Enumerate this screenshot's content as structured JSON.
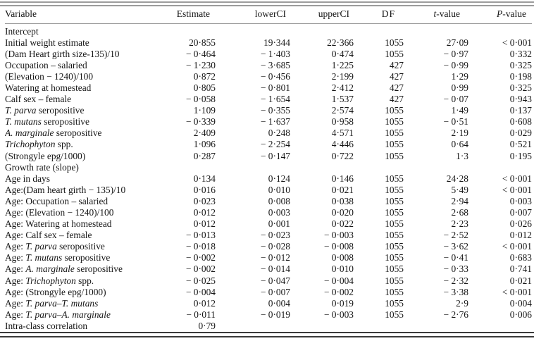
{
  "page": {
    "background": "#ffffff",
    "text_color": "#161616"
  },
  "rules": {
    "top_color": "#9c9c9c",
    "header_rule_color": "#9c9c9c",
    "bottom_color": "#3a3a3a"
  },
  "table": {
    "columns": [
      {
        "name": "variable",
        "label": "Variable"
      },
      {
        "name": "estimate",
        "label": "Estimate"
      },
      {
        "name": "lowerCI",
        "label": "lowerCI"
      },
      {
        "name": "upperCI",
        "label": "upperCI"
      },
      {
        "name": "df",
        "label": "DF"
      },
      {
        "name": "t_value",
        "label": "*t*-value"
      },
      {
        "name": "p_value",
        "label": "*P*-value"
      }
    ],
    "rows": [
      {
        "label": "Intercept",
        "section": true
      },
      {
        "label": "Initial weight estimate",
        "values": [
          "20·855",
          "19·344",
          "22·366",
          "1055",
          "27·09",
          "< 0·001"
        ]
      },
      {
        "label": "(Dam Heart girth size-135)/10",
        "values": [
          "− 0·464",
          "− 1·403",
          "0·474",
          "1055",
          "− 0·97",
          "0·332"
        ]
      },
      {
        "label": "Occupation – salaried",
        "values": [
          "− 1·230",
          "− 3·685",
          "1·225",
          "427",
          "− 0·99",
          "0·325"
        ]
      },
      {
        "label": "(Elevation − 1240)/100",
        "values": [
          "0·872",
          "− 0·456",
          "2·199",
          "427",
          "1·29",
          "0·198"
        ]
      },
      {
        "label": "Watering at homestead",
        "values": [
          "0·805",
          "− 0·801",
          "2·412",
          "427",
          "0·99",
          "0·325"
        ]
      },
      {
        "label": "Calf sex – female",
        "values": [
          "− 0·058",
          "− 1·654",
          "1·537",
          "427",
          "− 0·07",
          "0·943"
        ]
      },
      {
        "label": "*T. parva* seropositive",
        "values": [
          "1·109",
          "− 0·355",
          "2·574",
          "1055",
          "1·49",
          "0·137"
        ]
      },
      {
        "label": "*T. mutans* seropositive",
        "values": [
          "− 0·339",
          "− 1·637",
          "0·958",
          "1055",
          "− 0·51",
          "0·608"
        ]
      },
      {
        "label": "*A. marginale* seropositive",
        "values": [
          "2·409",
          "0·248",
          "4·571",
          "1055",
          "2·19",
          "0·029"
        ]
      },
      {
        "label": "*Trichophyton* spp.",
        "values": [
          "1·096",
          "− 2·254",
          "4·446",
          "1055",
          "0·64",
          "0·521"
        ]
      },
      {
        "label": "(Strongyle epg/1000)",
        "values": [
          "0·287",
          "− 0·147",
          "0·722",
          "1055",
          "1·3",
          "0·195"
        ]
      },
      {
        "label": "Growth rate (slope)",
        "section": true
      },
      {
        "label": "Age in days",
        "values": [
          "0·134",
          "0·124",
          "0·146",
          "1055",
          "24·28",
          "< 0·001"
        ]
      },
      {
        "label": "Age:(Dam heart girth − 135)/10",
        "values": [
          "0·016",
          "0·010",
          "0·021",
          "1055",
          "5·49",
          "< 0·001"
        ]
      },
      {
        "label": "Age: Occupation – salaried",
        "values": [
          "0·023",
          "0·008",
          "0·038",
          "1055",
          "2·94",
          "0·003"
        ]
      },
      {
        "label": "Age: (Elevation − 1240)/100",
        "values": [
          "0·012",
          "0·003",
          "0·020",
          "1055",
          "2·68",
          "0·007"
        ]
      },
      {
        "label": "Age: Watering at homestead",
        "values": [
          "0·012",
          "0·001",
          "0·022",
          "1055",
          "2·23",
          "0·026"
        ]
      },
      {
        "label": "Age: Calf sex – female",
        "values": [
          "− 0·013",
          "− 0·023",
          "− 0·003",
          "1055",
          "− 2·52",
          "0·012"
        ]
      },
      {
        "label": "Age: *T. parva* seropositive",
        "values": [
          "− 0·018",
          "− 0·028",
          "− 0·008",
          "1055",
          "− 3·62",
          "< 0·001"
        ]
      },
      {
        "label": "Age: *T. mutans* seropositive",
        "values": [
          "− 0·002",
          "− 0·012",
          "0·008",
          "1055",
          "− 0·41",
          "0·683"
        ]
      },
      {
        "label": "Age: *A. marginale* seropositive",
        "values": [
          "− 0·002",
          "− 0·014",
          "0·010",
          "1055",
          "− 0·33",
          "0·741"
        ]
      },
      {
        "label": "Age: *Trichophyton* spp.",
        "values": [
          "− 0·025",
          "− 0·047",
          "− 0·004",
          "1055",
          "− 2·32",
          "0·021"
        ]
      },
      {
        "label": "Age: (Strongyle epg/1000)",
        "values": [
          "− 0·004",
          "− 0·007",
          "− 0·002",
          "1055",
          "− 3·38",
          "< 0·001"
        ]
      },
      {
        "label": "Age: *T. parva*–*T. mutans*",
        "values": [
          "0·012",
          "0·004",
          "0·019",
          "1055",
          "2·9",
          "0·004"
        ]
      },
      {
        "label": "Age: *T. parva*–*A. marginale*",
        "values": [
          "− 0·011",
          "− 0·019",
          "− 0·003",
          "1055",
          "− 2·76",
          "0·006"
        ]
      },
      {
        "label": "Intra-class correlation",
        "values": [
          "0·79",
          "",
          "",
          "",
          "",
          ""
        ]
      }
    ]
  }
}
